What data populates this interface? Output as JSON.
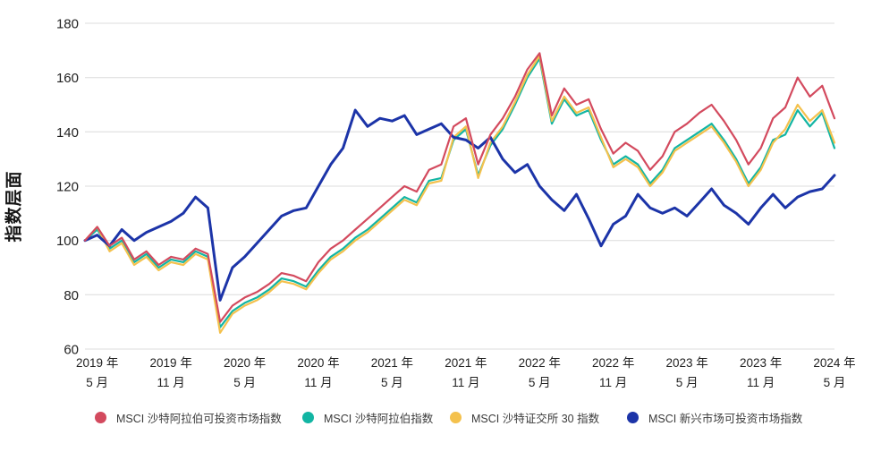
{
  "chart_data": {
    "type": "line",
    "title": "",
    "xlabel": "",
    "ylabel": "指数层面",
    "ylim": [
      60,
      180
    ],
    "yticks": [
      180,
      160,
      140,
      120,
      100,
      80,
      60
    ],
    "grid": "horizontal",
    "legend_position": "bottom",
    "categories": [
      "2019-04",
      "2019-05",
      "2019-06",
      "2019-07",
      "2019-08",
      "2019-09",
      "2019-10",
      "2019-11",
      "2019-12",
      "2020-01",
      "2020-02",
      "2020-03",
      "2020-04",
      "2020-05",
      "2020-06",
      "2020-07",
      "2020-08",
      "2020-09",
      "2020-10",
      "2020-11",
      "2020-12",
      "2021-01",
      "2021-02",
      "2021-03",
      "2021-04",
      "2021-05",
      "2021-06",
      "2021-07",
      "2021-08",
      "2021-09",
      "2021-10",
      "2021-11",
      "2021-12",
      "2022-01",
      "2022-02",
      "2022-03",
      "2022-04",
      "2022-05",
      "2022-06",
      "2022-07",
      "2022-08",
      "2022-09",
      "2022-10",
      "2022-11",
      "2022-12",
      "2023-01",
      "2023-02",
      "2023-03",
      "2023-04",
      "2023-05",
      "2023-06",
      "2023-07",
      "2023-08",
      "2023-09",
      "2023-10",
      "2023-11",
      "2023-12",
      "2024-01",
      "2024-02",
      "2024-03",
      "2024-04",
      "2024-05"
    ],
    "xtick_labels": [
      {
        "top": "2019 年",
        "bottom": "5 月"
      },
      {
        "top": "2019 年",
        "bottom": "11 月"
      },
      {
        "top": "2020 年",
        "bottom": "5 月"
      },
      {
        "top": "2020 年",
        "bottom": "11 月"
      },
      {
        "top": "2021 年",
        "bottom": "5 月"
      },
      {
        "top": "2021 年",
        "bottom": "11 月"
      },
      {
        "top": "2022 年",
        "bottom": "5 月"
      },
      {
        "top": "2022 年",
        "bottom": "11 月"
      },
      {
        "top": "2023 年",
        "bottom": "5 月"
      },
      {
        "top": "2023 年",
        "bottom": "11 月"
      },
      {
        "top": "2024 年",
        "bottom": "5 月"
      }
    ],
    "series": [
      {
        "name": "MSCI 沙特阿拉伯可投资市场指数",
        "color": "#d34a5e",
        "values": [
          100,
          105,
          98,
          101,
          93,
          96,
          91,
          94,
          93,
          97,
          95,
          70,
          76,
          79,
          81,
          84,
          88,
          87,
          85,
          92,
          97,
          100,
          104,
          108,
          112,
          116,
          120,
          118,
          126,
          128,
          142,
          145,
          128,
          139,
          145,
          153,
          163,
          169,
          146,
          156,
          150,
          152,
          141,
          132,
          136,
          133,
          126,
          131,
          140,
          143,
          147,
          150,
          144,
          137,
          128,
          134,
          145,
          149,
          160,
          153,
          157,
          145
        ]
      },
      {
        "name": "MSCI 沙特阿拉伯指数",
        "color": "#12b5a3",
        "values": [
          100,
          104,
          97,
          100,
          92,
          95,
          90,
          93,
          92,
          96,
          94,
          68,
          74,
          77,
          79,
          82,
          86,
          85,
          83,
          89,
          94,
          97,
          101,
          104,
          108,
          112,
          116,
          114,
          122,
          123,
          137,
          141,
          124,
          135,
          141,
          150,
          160,
          167,
          143,
          152,
          146,
          148,
          137,
          128,
          131,
          128,
          121,
          126,
          134,
          137,
          140,
          143,
          137,
          130,
          121,
          127,
          137,
          139,
          148,
          142,
          147,
          134
        ]
      },
      {
        "name": "MSCI 沙特证交所 30 指数",
        "color": "#f4c14d",
        "values": [
          100,
          105,
          96,
          99,
          91,
          94,
          89,
          92,
          91,
          95,
          93,
          66,
          73,
          76,
          78,
          81,
          85,
          84,
          82,
          88,
          93,
          96,
          100,
          103,
          107,
          111,
          115,
          113,
          121,
          122,
          138,
          142,
          123,
          136,
          142,
          151,
          161,
          168,
          144,
          153,
          147,
          149,
          138,
          127,
          130,
          127,
          120,
          125,
          133,
          136,
          139,
          142,
          136,
          129,
          120,
          126,
          136,
          141,
          150,
          144,
          148,
          136
        ]
      },
      {
        "name": "MSCI 新兴市场可投资市场指数",
        "color": "#1c34a8",
        "values": [
          100,
          102,
          98,
          104,
          100,
          103,
          105,
          107,
          110,
          116,
          112,
          78,
          90,
          94,
          99,
          104,
          109,
          111,
          112,
          120,
          128,
          134,
          148,
          142,
          145,
          144,
          146,
          139,
          141,
          143,
          138,
          137,
          134,
          138,
          130,
          125,
          128,
          120,
          115,
          111,
          117,
          108,
          98,
          106,
          109,
          117,
          112,
          110,
          112,
          109,
          114,
          119,
          113,
          110,
          106,
          112,
          117,
          112,
          116,
          118,
          119,
          124
        ]
      }
    ]
  }
}
